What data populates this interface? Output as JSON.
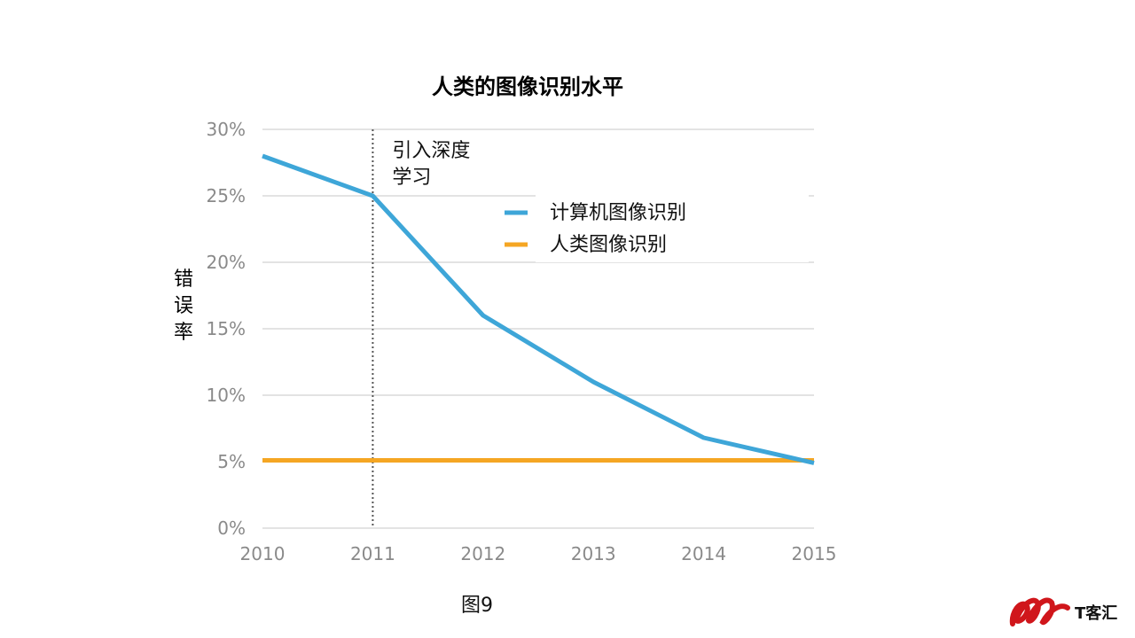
{
  "chart_data": {
    "type": "line",
    "title": "人类的图像识别水平",
    "ylabel": "错误率",
    "x": [
      2010,
      2011,
      2012,
      2013,
      2014,
      2015
    ],
    "x_tick_labels": [
      "2010",
      "2011",
      "2012",
      "2013",
      "2014",
      "2015"
    ],
    "y_tick_labels": [
      "0%",
      "5%",
      "10%",
      "15%",
      "20%",
      "25%",
      "30%"
    ],
    "y_ticks": [
      0,
      5,
      10,
      15,
      20,
      25,
      30
    ],
    "ylim": [
      0,
      30
    ],
    "xlim": [
      2010,
      2015
    ],
    "grid": true,
    "legend_position": "top-right",
    "series": [
      {
        "name": "计算机图像识别",
        "color": "#3ea6d8",
        "values": [
          28,
          25,
          16,
          11,
          6.8,
          4.9
        ]
      },
      {
        "name": "人类图像识别",
        "color": "#f5a623",
        "values": [
          5.1,
          5.1,
          5.1,
          5.1,
          5.1,
          5.1
        ]
      }
    ],
    "annotation": {
      "x": 2011,
      "lines": [
        "引入深度",
        "学习"
      ]
    }
  },
  "caption": "图9",
  "logo": {
    "text": "T客汇"
  }
}
